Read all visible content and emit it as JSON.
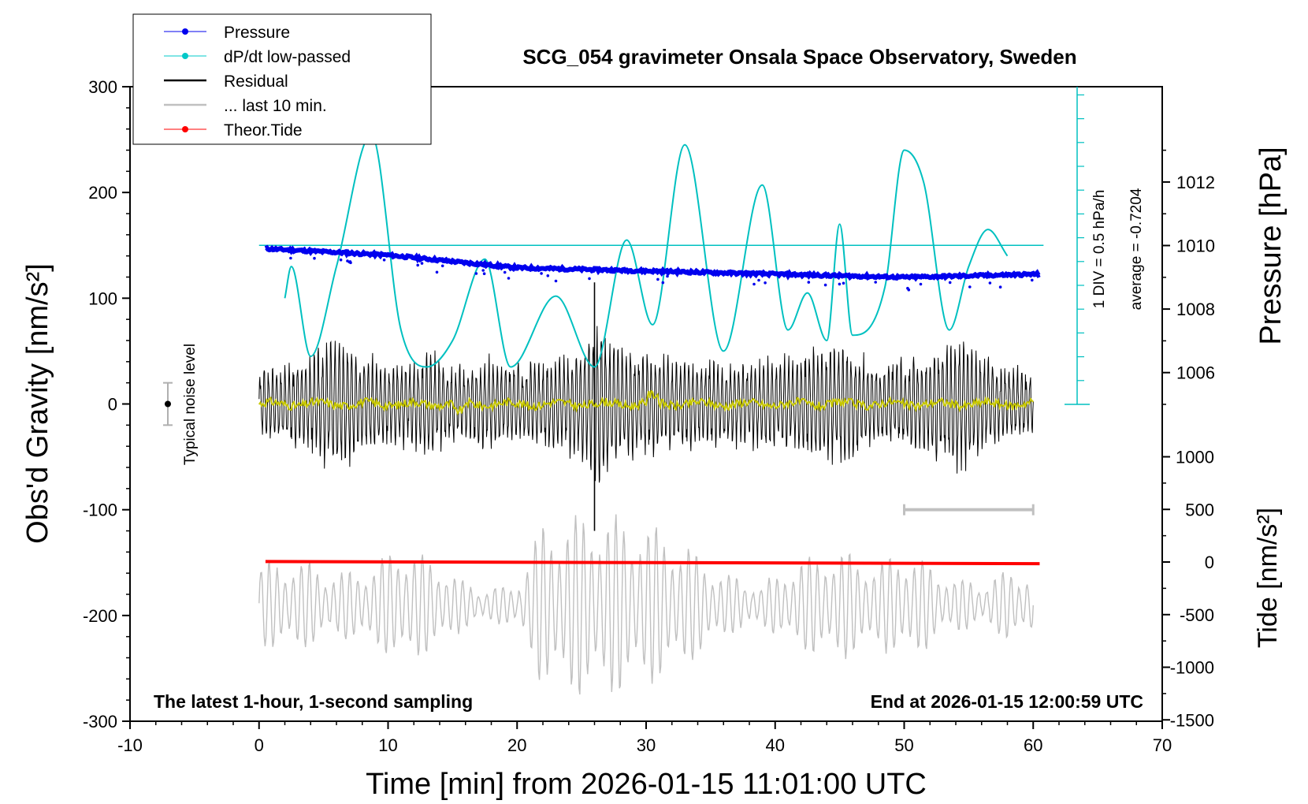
{
  "chart_data": {
    "type": "line",
    "title": "SCG_054 gravimeter Onsala Space Observatory, Sweden",
    "xlabel": "Time [min] from 2026-01-15 11:01:00 UTC",
    "ylabel_left": "Obs'd Gravity [nm/s²]",
    "ylabel_right_top": "Pressure [hPa]",
    "ylabel_right_bottom": "Tide [nm/s²]",
    "xlim": [
      -10,
      70
    ],
    "ylim_left": [
      -300,
      300
    ],
    "x_ticks": [
      "-10",
      "0",
      "10",
      "20",
      "30",
      "40",
      "50",
      "60",
      "70"
    ],
    "y_left_ticks": [
      "300",
      "200",
      "100",
      "0",
      "-100",
      "-200",
      "-300"
    ],
    "pressure_ticks": [
      "1012",
      "1010",
      "1008",
      "1006"
    ],
    "tide_ticks": [
      "1000",
      "500",
      "0",
      "-500",
      "-1000",
      "-1500"
    ],
    "grid": false,
    "legend_position": "top-left",
    "legend": [
      {
        "name": "Pressure",
        "color": "#0000ee"
      },
      {
        "name": "dP/dt low-passed",
        "color": "#00c8c8"
      },
      {
        "name": "Residual",
        "color": "#000000"
      },
      {
        "name": "... last 10 min.",
        "color": "#c0c0c0"
      },
      {
        "name": "Theor.Tide",
        "color": "#ff0000"
      }
    ],
    "annotations": {
      "noise": "Typical noise level",
      "dpdt_scale": "1 DIV = 0.5 hPa/h",
      "dpdt_average": "average = -0.7204",
      "sampling": "The latest 1-hour, 1-second sampling",
      "end_time": "End at 2026-01-15 12:00:59 UTC"
    },
    "series": [
      {
        "name": "Pressure",
        "unit": "hPa",
        "x": [
          0.5,
          10,
          20,
          30,
          40,
          50,
          60.5
        ],
        "values": [
          1009.9,
          1009.7,
          1009.3,
          1009.2,
          1009.1,
          1009.0,
          1009.1
        ]
      },
      {
        "name": "dP/dt low-passed",
        "unit": "nm/s² plot scale",
        "x": [
          2,
          2.5,
          4,
          6,
          8.7,
          11,
          13,
          15,
          17.5,
          19.5,
          23,
          26,
          28.5,
          30.5,
          33,
          36,
          39,
          41,
          42.5,
          44,
          45,
          46,
          48.5,
          50,
          51.5,
          53.5,
          55,
          56.5,
          58
        ],
        "values": [
          100,
          130,
          45,
          130,
          255,
          70,
          35,
          60,
          137,
          35,
          102,
          35,
          155,
          75,
          245,
          50,
          207,
          70,
          105,
          60,
          170,
          65,
          110,
          240,
          210,
          70,
          130,
          165,
          140
        ]
      },
      {
        "name": "Residual",
        "unit": "nm/s²",
        "x": [
          0,
          6,
          13,
          26,
          26.5,
          32,
          45,
          55,
          60
        ],
        "values": [
          0,
          65,
          40,
          100,
          -120,
          60,
          -95,
          75,
          0
        ]
      },
      {
        "name": "... last 10 min.",
        "unit": "nm/s²",
        "x": [
          50,
          60
        ],
        "values": [
          -100,
          -100
        ]
      },
      {
        "name": "Theor.Tide",
        "unit": "nm/s²",
        "x": [
          0.5,
          60.5
        ],
        "values": [
          -149,
          -151
        ]
      }
    ]
  }
}
